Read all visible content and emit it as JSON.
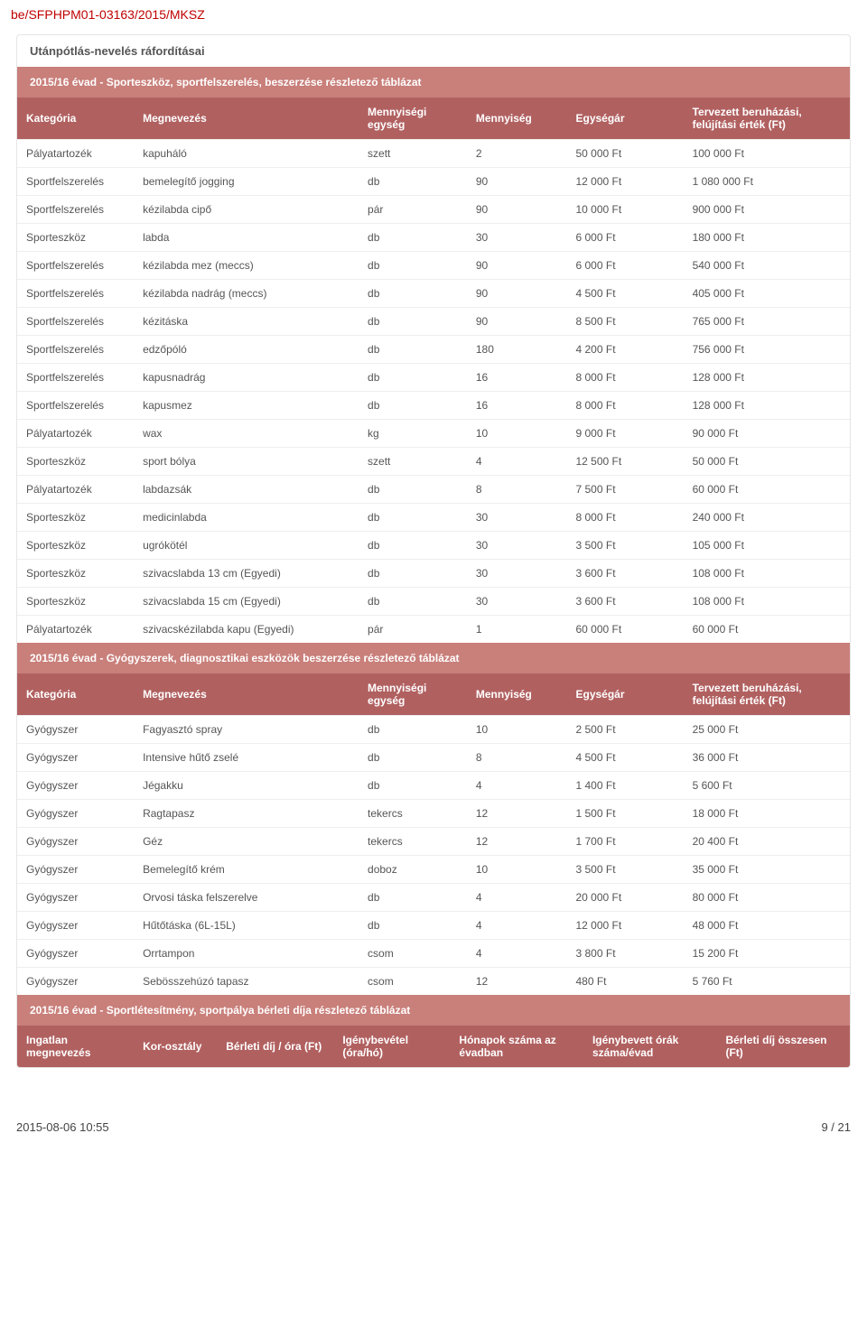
{
  "doc_id": "be/SFPHPM01-03163/2015/MKSZ",
  "page_title": "Utánpótlás-nevelés ráfordításai",
  "table1": {
    "heading": "2015/16 évad - Sporteszköz, sportfelszerelés, beszerzése részletező táblázat",
    "headers": [
      "Kategória",
      "Megnevezés",
      "Mennyiségi egység",
      "Mennyiség",
      "Egységár",
      "Tervezett beruházási, felújítási érték (Ft)"
    ],
    "rows": [
      [
        "Pályatartozék",
        "kapuháló",
        "szett",
        "2",
        "50 000 Ft",
        "100 000 Ft"
      ],
      [
        "Sportfelszerelés",
        "bemelegítő jogging",
        "db",
        "90",
        "12 000 Ft",
        "1 080 000 Ft"
      ],
      [
        "Sportfelszerelés",
        "kézilabda cipő",
        "pár",
        "90",
        "10 000 Ft",
        "900 000 Ft"
      ],
      [
        "Sporteszköz",
        "labda",
        "db",
        "30",
        "6 000 Ft",
        "180 000 Ft"
      ],
      [
        "Sportfelszerelés",
        "kézilabda mez (meccs)",
        "db",
        "90",
        "6 000 Ft",
        "540 000 Ft"
      ],
      [
        "Sportfelszerelés",
        "kézilabda nadrág (meccs)",
        "db",
        "90",
        "4 500 Ft",
        "405 000 Ft"
      ],
      [
        "Sportfelszerelés",
        "kézitáska",
        "db",
        "90",
        "8 500 Ft",
        "765 000 Ft"
      ],
      [
        "Sportfelszerelés",
        "edzőpóló",
        "db",
        "180",
        "4 200 Ft",
        "756 000 Ft"
      ],
      [
        "Sportfelszerelés",
        "kapusnadrág",
        "db",
        "16",
        "8 000 Ft",
        "128 000 Ft"
      ],
      [
        "Sportfelszerelés",
        "kapusmez",
        "db",
        "16",
        "8 000 Ft",
        "128 000 Ft"
      ],
      [
        "Pályatartozék",
        "wax",
        "kg",
        "10",
        "9 000 Ft",
        "90 000 Ft"
      ],
      [
        "Sporteszköz",
        "sport bólya",
        "szett",
        "4",
        "12 500 Ft",
        "50 000 Ft"
      ],
      [
        "Pályatartozék",
        "labdazsák",
        "db",
        "8",
        "7 500 Ft",
        "60 000 Ft"
      ],
      [
        "Sporteszköz",
        "medicinlabda",
        "db",
        "30",
        "8 000 Ft",
        "240 000 Ft"
      ],
      [
        "Sporteszköz",
        "ugrókötél",
        "db",
        "30",
        "3 500 Ft",
        "105 000 Ft"
      ],
      [
        "Sporteszköz",
        "szivacslabda 13 cm (Egyedi)",
        "db",
        "30",
        "3 600 Ft",
        "108 000 Ft"
      ],
      [
        "Sporteszköz",
        "szivacslabda 15 cm (Egyedi)",
        "db",
        "30",
        "3 600 Ft",
        "108 000 Ft"
      ],
      [
        "Pályatartozék",
        "szivacskézilabda kapu (Egyedi)",
        "pár",
        "1",
        "60 000 Ft",
        "60 000 Ft"
      ]
    ]
  },
  "table2": {
    "heading": "2015/16 évad - Gyógyszerek, diagnosztikai eszközök beszerzése részletező táblázat",
    "headers": [
      "Kategória",
      "Megnevezés",
      "Mennyiségi egység",
      "Mennyiség",
      "Egységár",
      "Tervezett beruházási, felújítási érték (Ft)"
    ],
    "rows": [
      [
        "Gyógyszer",
        "Fagyasztó spray",
        "db",
        "10",
        "2 500 Ft",
        "25 000 Ft"
      ],
      [
        "Gyógyszer",
        "Intensive hűtő zselé",
        "db",
        "8",
        "4 500 Ft",
        "36 000 Ft"
      ],
      [
        "Gyógyszer",
        "Jégakku",
        "db",
        "4",
        "1 400 Ft",
        "5 600 Ft"
      ],
      [
        "Gyógyszer",
        "Ragtapasz",
        "tekercs",
        "12",
        "1 500 Ft",
        "18 000 Ft"
      ],
      [
        "Gyógyszer",
        "Géz",
        "tekercs",
        "12",
        "1 700 Ft",
        "20 400 Ft"
      ],
      [
        "Gyógyszer",
        "Bemelegítő krém",
        "doboz",
        "10",
        "3 500 Ft",
        "35 000 Ft"
      ],
      [
        "Gyógyszer",
        "Orvosi táska felszerelve",
        "db",
        "4",
        "20 000 Ft",
        "80 000 Ft"
      ],
      [
        "Gyógyszer",
        "Hűtőtáska (6L-15L)",
        "db",
        "4",
        "12 000 Ft",
        "48 000 Ft"
      ],
      [
        "Gyógyszer",
        "Orrtampon",
        "csom",
        "4",
        "3 800 Ft",
        "15 200 Ft"
      ],
      [
        "Gyógyszer",
        "Sebösszehúzó tapasz",
        "csom",
        "12",
        "480 Ft",
        "5 760 Ft"
      ]
    ]
  },
  "table3": {
    "heading": "2015/16 évad - Sportlétesítmény, sportpálya bérleti díja részletező táblázat",
    "headers": [
      "Ingatlan megnevezés",
      "Kor-osztály",
      "Bérleti díj / óra (Ft)",
      "Igénybevétel (óra/hó)",
      "Hónapok száma az évadban",
      "Igénybevett órák száma/évad",
      "Bérleti díj összesen (Ft)"
    ]
  },
  "footer": {
    "timestamp": "2015-08-06 10:55",
    "page": "9 / 21"
  },
  "col_widths_6": [
    "14%",
    "27%",
    "13%",
    "12%",
    "14%",
    "20%"
  ],
  "col_widths_7": [
    "14%",
    "10%",
    "14%",
    "14%",
    "16%",
    "16%",
    "16%"
  ]
}
